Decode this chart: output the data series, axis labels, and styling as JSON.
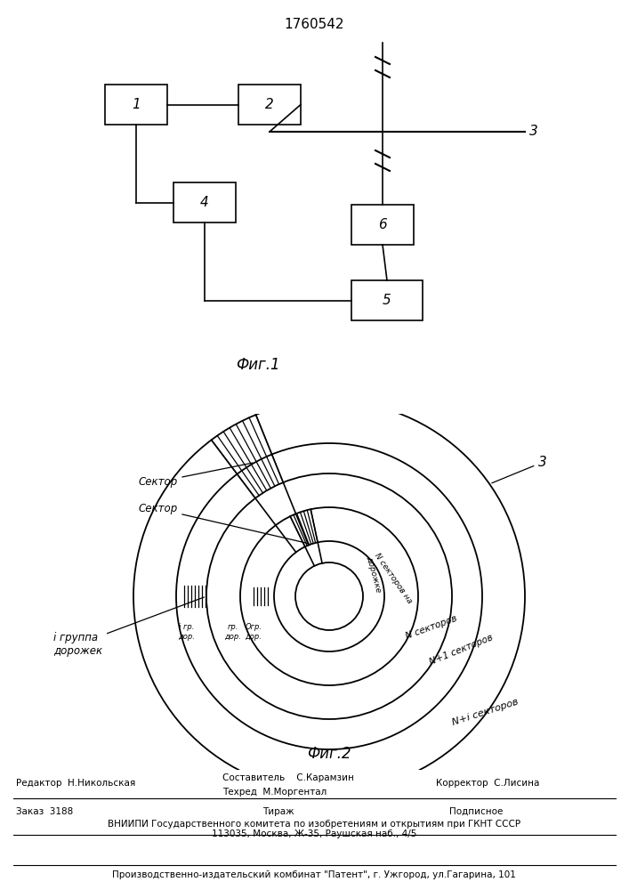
{
  "title": "1760542",
  "fig1_caption": "Фиг.1",
  "fig2_caption": "Фиг.2",
  "bg_color": "#ffffff",
  "line_color": "#000000",
  "sector_label1": "Сектор",
  "sector_label2": "Сектор",
  "group_label": "i группа\nдорожек",
  "footer_ed": "Редактор  Н.Никольская",
  "footer_comp": "Составитель    С.Карамзин",
  "footer_tech": "Техред  М.Моргентал",
  "footer_corr": "Корректор  С.Лисина",
  "footer_order": "Заказ  3188",
  "footer_print": "Тираж",
  "footer_sub": "Подписное",
  "footer_vniip": "ВНИИПИ Государственного комитета по изобретениям и открытиям при ГКНТ СССР",
  "footer_addr": "113035, Москва, Ж-35, Раушская наб., 4/5",
  "footer_pub": "Производственно-издательский комбинат \"Патент\", г. Ужгород, ул.Гагарина, 101"
}
